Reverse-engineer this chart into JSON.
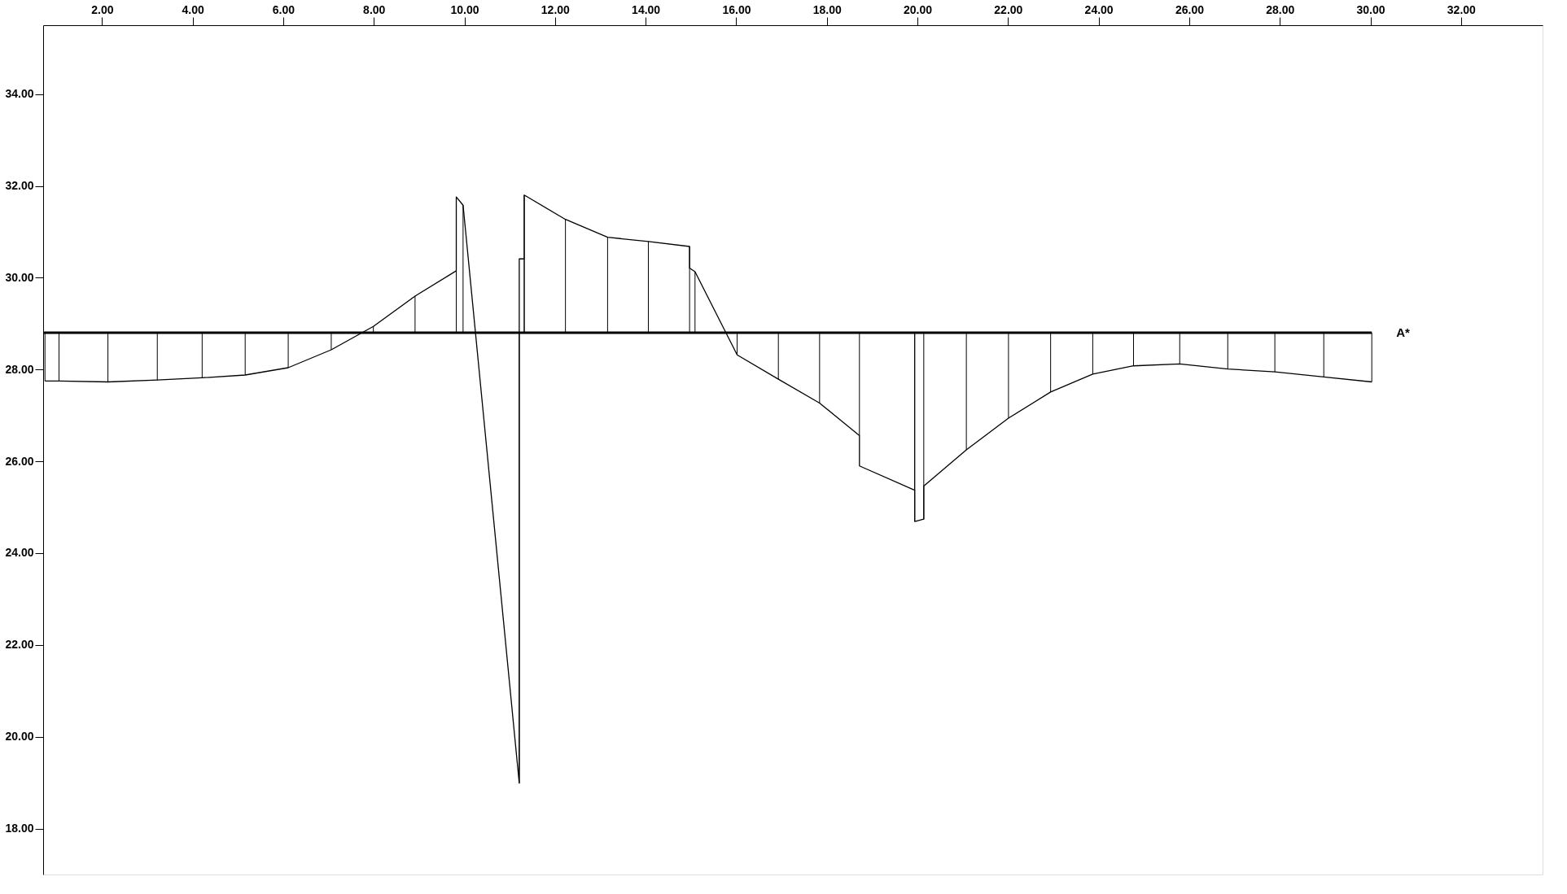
{
  "chart_data": {
    "type": "line",
    "grid": false,
    "marker": "none",
    "line_style": "solid",
    "xlim": [
      0.7,
      33.8
    ],
    "ylim": [
      17,
      35.5
    ],
    "xticks": [
      {
        "value": 2,
        "label": "2.00"
      },
      {
        "value": 4,
        "label": "4.00"
      },
      {
        "value": 6,
        "label": "6.00"
      },
      {
        "value": 8,
        "label": "8.00"
      },
      {
        "value": 10,
        "label": "10.00"
      },
      {
        "value": 12,
        "label": "12.00"
      },
      {
        "value": 14,
        "label": "14.00"
      },
      {
        "value": 16,
        "label": "16.00"
      },
      {
        "value": 18,
        "label": "18.00"
      },
      {
        "value": 20,
        "label": "20.00"
      },
      {
        "value": 22,
        "label": "22.00"
      },
      {
        "value": 24,
        "label": "24.00"
      },
      {
        "value": 26,
        "label": "26.00"
      },
      {
        "value": 28,
        "label": "28.00"
      },
      {
        "value": 30,
        "label": "30.00"
      },
      {
        "value": 32,
        "label": "32.00"
      }
    ],
    "yticks": [
      {
        "value": 18,
        "label": "18.00"
      },
      {
        "value": 20,
        "label": "20.00"
      },
      {
        "value": 22,
        "label": "22.00"
      },
      {
        "value": 24,
        "label": "24.00"
      },
      {
        "value": 26,
        "label": "26.00"
      },
      {
        "value": 28,
        "label": "28.00"
      },
      {
        "value": 30,
        "label": "30.00"
      },
      {
        "value": 32,
        "label": "32.00"
      },
      {
        "value": 34,
        "label": "34.00"
      }
    ],
    "ref_lines": [
      {
        "axis": "y",
        "value": 28.8,
        "label": "A*",
        "color": "#000000"
      }
    ],
    "series": [
      {
        "color": "#000000",
        "x": [
          0.74,
          1.05,
          2.13,
          3.22,
          4.21,
          5.16,
          6.11,
          7.06,
          7.99,
          8.91,
          9.82,
          9.82,
          9.97,
          11.21,
          11.21,
          11.32,
          11.32,
          12.23,
          13.16,
          14.06,
          14.97,
          14.97,
          15.09,
          16.02,
          16.93,
          17.84,
          18.72,
          18.72,
          19.94,
          19.94,
          20.14,
          20.14,
          21.08,
          22.01,
          22.94,
          23.87,
          24.77,
          25.79,
          26.85,
          27.89,
          28.97,
          30.03
        ],
        "values": [
          27.75,
          27.75,
          27.73,
          27.77,
          27.82,
          27.88,
          28.04,
          28.43,
          28.94,
          29.6,
          30.15,
          31.76,
          31.58,
          18.99,
          30.41,
          30.41,
          31.8,
          31.27,
          30.88,
          30.79,
          30.68,
          30.21,
          30.13,
          28.32,
          27.79,
          27.27,
          26.56,
          25.9,
          25.37,
          24.69,
          24.74,
          25.46,
          26.25,
          26.94,
          27.51,
          27.9,
          28.08,
          28.12,
          28.01,
          27.95,
          27.84,
          27.73
        ],
        "errors": [
          [
            27.75,
            28.8
          ],
          [
            27.75,
            28.8
          ],
          [
            27.73,
            28.8
          ],
          [
            27.77,
            28.8
          ],
          [
            27.82,
            28.8
          ],
          [
            27.88,
            28.8
          ],
          [
            28.04,
            28.8
          ],
          [
            28.43,
            28.8
          ],
          [
            28.8,
            28.94
          ],
          [
            28.8,
            29.6
          ],
          [
            28.8,
            30.15
          ],
          null,
          [
            28.8,
            31.58
          ],
          null,
          [
            18.99,
            28.8
          ],
          [
            28.8,
            30.41
          ],
          [
            28.8,
            31.8
          ],
          [
            28.8,
            31.27
          ],
          [
            28.8,
            30.88
          ],
          [
            28.8,
            30.79
          ],
          [
            28.8,
            30.68
          ],
          null,
          [
            28.8,
            30.13
          ],
          [
            28.32,
            28.8
          ],
          [
            27.79,
            28.8
          ],
          [
            27.27,
            28.8
          ],
          [
            26.56,
            28.8
          ],
          null,
          [
            25.37,
            28.8
          ],
          [
            24.69,
            28.8
          ],
          [
            24.74,
            28.8
          ],
          null,
          [
            26.25,
            28.8
          ],
          [
            26.94,
            28.8
          ],
          [
            27.51,
            28.8
          ],
          [
            27.9,
            28.8
          ],
          [
            28.08,
            28.8
          ],
          [
            28.12,
            28.8
          ],
          [
            28.01,
            28.8
          ],
          [
            27.95,
            28.8
          ],
          [
            27.84,
            28.8
          ],
          [
            27.73,
            28.8
          ]
        ]
      }
    ]
  }
}
